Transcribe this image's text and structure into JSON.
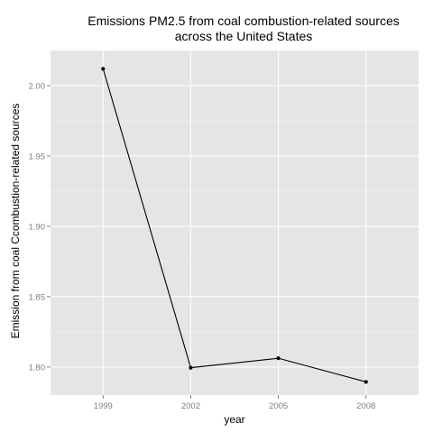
{
  "chart_data": {
    "type": "line",
    "title": [
      "Emissions PM2.5 from coal combustion-related sources",
      "across the United States"
    ],
    "xlabel": "year",
    "ylabel": "Emission from coal Ccombustion-related sources",
    "categories": [
      "1999",
      "2002",
      "2005",
      "2008"
    ],
    "series": [
      {
        "values": [
          2.012,
          1.7995,
          1.8062,
          1.7894
        ]
      }
    ],
    "ylim": [
      1.78,
      2.025
    ],
    "yticks": [
      1.8,
      1.85,
      1.9,
      1.95,
      2.0
    ],
    "ytick_labels": [
      "1.80",
      "1.85",
      "1.90",
      "1.95",
      "2.00"
    ],
    "grid": true,
    "legend": "none",
    "colors": {
      "panel_background": "#e5e5e5",
      "grid_major": "#ffffff",
      "grid_minor": "#f2f2f2",
      "line": "#000000",
      "point": "#000000",
      "tick_label": "#7f7f7f"
    }
  }
}
